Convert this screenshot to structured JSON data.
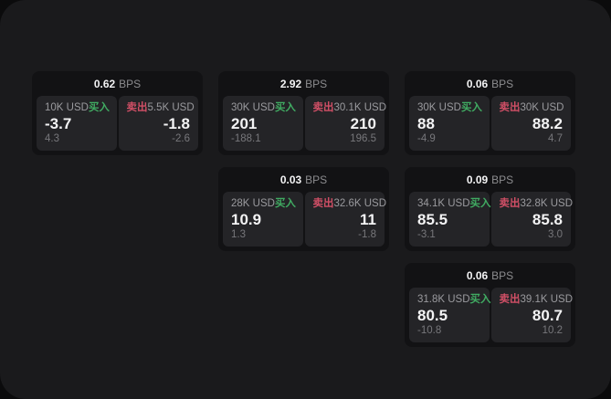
{
  "colors": {
    "page_bg": "#0b0b0c",
    "window_bg": "#1a1a1c",
    "card_bg": "#121214",
    "panel_bg": "#242427",
    "text_primary": "#f3f3f4",
    "text_secondary": "#9a9a9e",
    "text_tertiary": "#77777b",
    "buy_green": "#40ab62",
    "sell_red": "#d04f66"
  },
  "labels": {
    "bps_unit": "BPS",
    "buy": "买入",
    "sell": "卖出"
  },
  "cards": [
    {
      "row": 1,
      "col": 1,
      "bps": "0.62",
      "buy": {
        "notional": "10K USD",
        "price": "-3.7",
        "delta": "4.3"
      },
      "sell": {
        "notional": "5.5K USD",
        "price": "-1.8",
        "delta": "-2.6"
      }
    },
    {
      "row": 1,
      "col": 2,
      "bps": "2.92",
      "buy": {
        "notional": "30K USD",
        "price": "201",
        "delta": "-188.1"
      },
      "sell": {
        "notional": "30.1K USD",
        "price": "210",
        "delta": "196.5"
      }
    },
    {
      "row": 1,
      "col": 3,
      "bps": "0.06",
      "buy": {
        "notional": "30K USD",
        "price": "88",
        "delta": "-4.9"
      },
      "sell": {
        "notional": "30K USD",
        "price": "88.2",
        "delta": "4.7"
      }
    },
    {
      "row": 2,
      "col": 2,
      "bps": "0.03",
      "buy": {
        "notional": "28K USD",
        "price": "10.9",
        "delta": "1.3"
      },
      "sell": {
        "notional": "32.6K USD",
        "price": "11",
        "delta": "-1.8"
      }
    },
    {
      "row": 2,
      "col": 3,
      "bps": "0.09",
      "buy": {
        "notional": "34.1K USD",
        "price": "85.5",
        "delta": "-3.1"
      },
      "sell": {
        "notional": "32.8K USD",
        "price": "85.8",
        "delta": "3.0"
      }
    },
    {
      "row": 3,
      "col": 3,
      "bps": "0.06",
      "buy": {
        "notional": "31.8K USD",
        "price": "80.5",
        "delta": "-10.8"
      },
      "sell": {
        "notional": "39.1K USD",
        "price": "80.7",
        "delta": "10.2"
      }
    }
  ]
}
